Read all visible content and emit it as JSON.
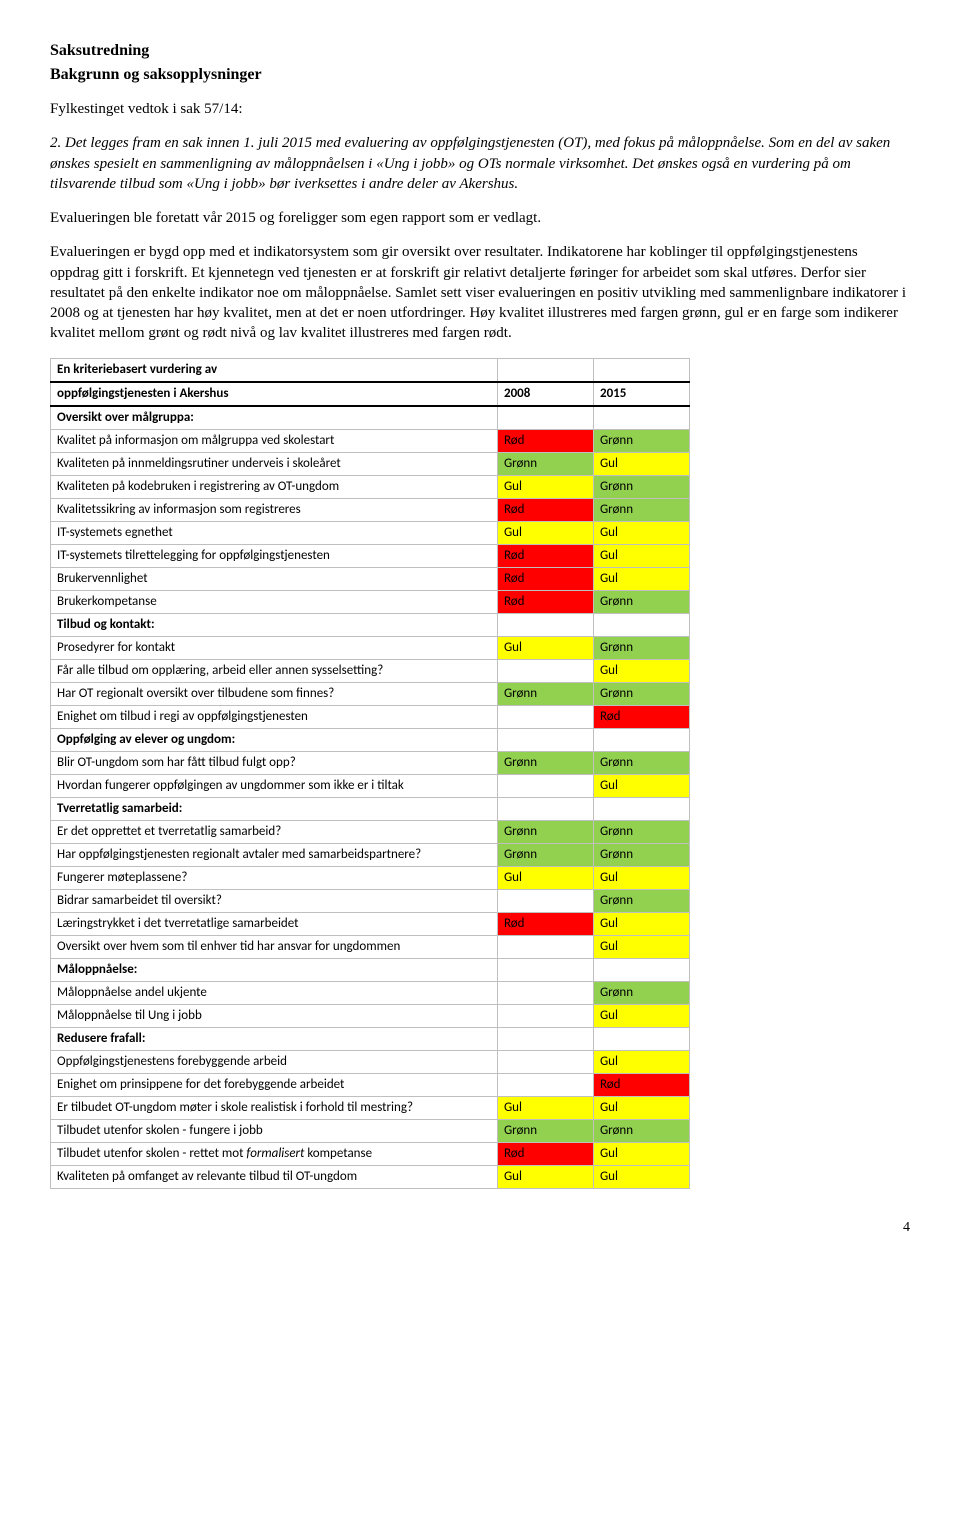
{
  "title": "Saksutredning",
  "subhead": "Bakgrunn og saksopplysninger",
  "intro": "Fylkestinget vedtok i sak 57/14:",
  "italicPara": "2. Det legges fram en sak innen 1. juli 2015 med evaluering av oppfølgingstjenesten (OT), med fokus på måloppnåelse. Som en del av saken ønskes spesielt en sammenligning av måloppnåelsen i «Ung i jobb» og OTs normale virksomhet. Det ønskes også en vurdering på om tilsvarende tilbud som «Ung i jobb» bør iverksettes i andre deler av Akershus.",
  "para2": "Evalueringen ble foretatt vår 2015 og foreligger som egen rapport som er vedlagt.",
  "para3": "Evalueringen er bygd opp med et indikatorsystem som gir oversikt over resultater. Indikatorene har koblinger til oppfølgingstjenestens oppdrag gitt i forskrift. Et kjennetegn ved tjenesten er at forskrift gir relativt detaljerte føringer for arbeidet som skal utføres. Derfor sier resultatet på den enkelte indikator noe om måloppnåelse. Samlet sett viser evalueringen en positiv utvikling med sammenlignbare indikatorer i 2008 og at tjenesten har høy kvalitet, men at det er noen utfordringer. Høy kvalitet illustreres med fargen grønn, gul er en farge som indikerer kvalitet mellom grønt og rødt nivå og lav kvalitet illustreres med fargen rødt.",
  "table": {
    "headTitle": "En kriteriebasert vurdering av",
    "headTitle2": "oppfølgingstjenesten i Akershus",
    "col2008": "2008",
    "col2015": "2015",
    "colorMap": {
      "red": "Rød",
      "green": "Grønn",
      "yellow": "Gul"
    },
    "rows": [
      {
        "type": "section",
        "label": "Oversikt over målgruppa:"
      },
      {
        "type": "data",
        "label": "Kvalitet på informasjon om målgruppa ved skolestart",
        "c2008": "red",
        "c2015": "green"
      },
      {
        "type": "data",
        "label": "Kvaliteten på innmeldingsrutiner underveis i skoleåret",
        "c2008": "green",
        "c2015": "yellow"
      },
      {
        "type": "data",
        "label": "Kvaliteten på kodebruken i registrering av OT-ungdom",
        "c2008": "yellow",
        "c2015": "green"
      },
      {
        "type": "data",
        "label": "Kvalitetssikring av informasjon som registreres",
        "c2008": "red",
        "c2015": "green"
      },
      {
        "type": "data",
        "label": "IT-systemets egnethet",
        "c2008": "yellow",
        "c2015": "yellow"
      },
      {
        "type": "data",
        "label": "IT-systemets tilrettelegging for oppfølgingstjenesten",
        "c2008": "red",
        "c2015": "yellow"
      },
      {
        "type": "data",
        "label": "Brukervennlighet",
        "c2008": "red",
        "c2015": "yellow"
      },
      {
        "type": "data",
        "label": "Brukerkompetanse",
        "c2008": "red",
        "c2015": "green"
      },
      {
        "type": "section",
        "label": "Tilbud og kontakt:"
      },
      {
        "type": "data",
        "label": "Prosedyrer for kontakt",
        "c2008": "yellow",
        "c2015": "green"
      },
      {
        "type": "data",
        "label": "Får alle tilbud om opplæring, arbeid eller annen sysselsetting?",
        "c2008": "",
        "c2015": "yellow"
      },
      {
        "type": "data",
        "label": "Har OT regionalt oversikt over tilbudene som finnes?",
        "c2008": "green",
        "c2015": "green"
      },
      {
        "type": "data",
        "label": "Enighet om tilbud i regi av oppfølgingstjenesten",
        "c2008": "",
        "c2015": "red"
      },
      {
        "type": "section",
        "label": "Oppfølging av elever og ungdom:"
      },
      {
        "type": "data",
        "label": "Blir OT-ungdom som har fått tilbud fulgt opp?",
        "c2008": "green",
        "c2015": "green"
      },
      {
        "type": "data",
        "label": "Hvordan fungerer oppfølgingen av ungdommer som ikke er i tiltak",
        "c2008": "",
        "c2015": "yellow"
      },
      {
        "type": "section",
        "label": "Tverretatlig samarbeid:"
      },
      {
        "type": "data",
        "label": "Er det opprettet et tverretatlig samarbeid?",
        "c2008": "green",
        "c2015": "green"
      },
      {
        "type": "data",
        "label": "Har oppfølgingstjenesten regionalt avtaler med samarbeidspartnere?",
        "c2008": "green",
        "c2015": "green"
      },
      {
        "type": "data",
        "label": "Fungerer møteplassene?",
        "c2008": "yellow",
        "c2015": "yellow"
      },
      {
        "type": "data",
        "label": "Bidrar samarbeidet til oversikt?",
        "c2008": "",
        "c2015": "green"
      },
      {
        "type": "data",
        "label": "Læringstrykket i det tverretatlige samarbeidet",
        "c2008": "red",
        "c2015": "yellow"
      },
      {
        "type": "data",
        "label": "Oversikt over hvem som til enhver tid har ansvar for ungdommen",
        "c2008": "",
        "c2015": "yellow"
      },
      {
        "type": "section",
        "label": "Måloppnåelse:"
      },
      {
        "type": "data",
        "label": "Måloppnåelse andel ukjente",
        "c2008": "",
        "c2015": "green"
      },
      {
        "type": "data",
        "label": "Måloppnåelse til Ung i jobb",
        "c2008": "",
        "c2015": "yellow"
      },
      {
        "type": "section",
        "label": "Redusere frafall:"
      },
      {
        "type": "data",
        "label": "Oppfølgingstjenestens forebyggende arbeid",
        "c2008": "",
        "c2015": "yellow"
      },
      {
        "type": "data",
        "label": "Enighet om prinsippene for det forebyggende arbeidet",
        "c2008": "",
        "c2015": "red"
      },
      {
        "type": "data",
        "label": "Er tilbudet OT-ungdom møter i skole realistisk i forhold til mestring?",
        "c2008": "yellow",
        "c2015": "yellow"
      },
      {
        "type": "data",
        "label": "Tilbudet utenfor skolen - fungere i jobb",
        "c2008": "green",
        "c2015": "green"
      },
      {
        "type": "data",
        "label": "Tilbudet utenfor skolen - rettet mot formalisert kompetanse",
        "c2008": "red",
        "c2015": "yellow",
        "italicWord": "formalisert"
      },
      {
        "type": "data",
        "label": "Kvaliteten på omfanget av relevante tilbud til OT-ungdom",
        "c2008": "yellow",
        "c2015": "yellow"
      }
    ]
  },
  "pageNum": "4"
}
